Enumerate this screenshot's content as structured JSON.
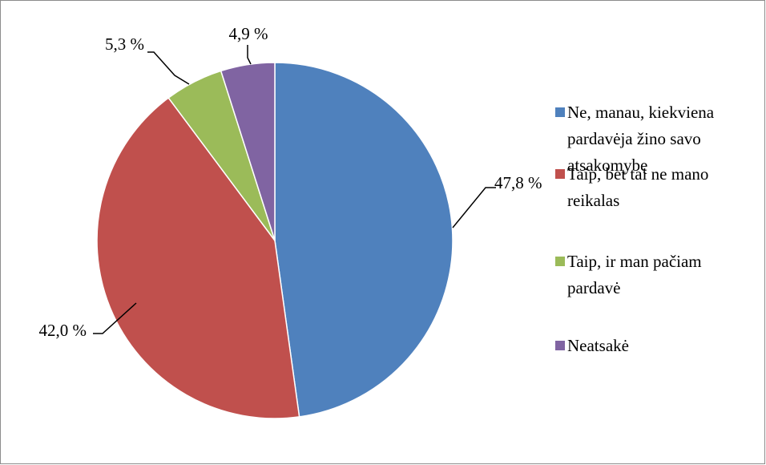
{
  "chart_data": {
    "type": "pie",
    "title": "",
    "slices": [
      {
        "name": "Ne, manau, kiekviena pardavėja žino savo atsakomybę",
        "legend_lines": [
          "Ne, manau, kiekviena",
          "pardavėja žino savo",
          "atsakomybę"
        ],
        "value": 47.8,
        "label": "47,8 %",
        "color": "#4f81bd"
      },
      {
        "name": "Taip, bet tai ne mano reikalas",
        "legend_lines": [
          "Taip, bet tai ne mano",
          "reikalas"
        ],
        "value": 42.0,
        "label": "42,0 %",
        "color": "#c0504d"
      },
      {
        "name": "Taip, ir man pačiam pardavė",
        "legend_lines": [
          "Taip, ir man pačiam",
          "pardavė"
        ],
        "value": 5.3,
        "label": "5,3 %",
        "color": "#9bbb59"
      },
      {
        "name": "Neatsakė",
        "legend_lines": [
          "Neatsakė"
        ],
        "value": 4.9,
        "label": "4,9 %",
        "color": "#8064a2"
      }
    ],
    "start_angle": "12 o'clock",
    "direction": "clockwise",
    "legend_position": "right",
    "grid": false
  }
}
